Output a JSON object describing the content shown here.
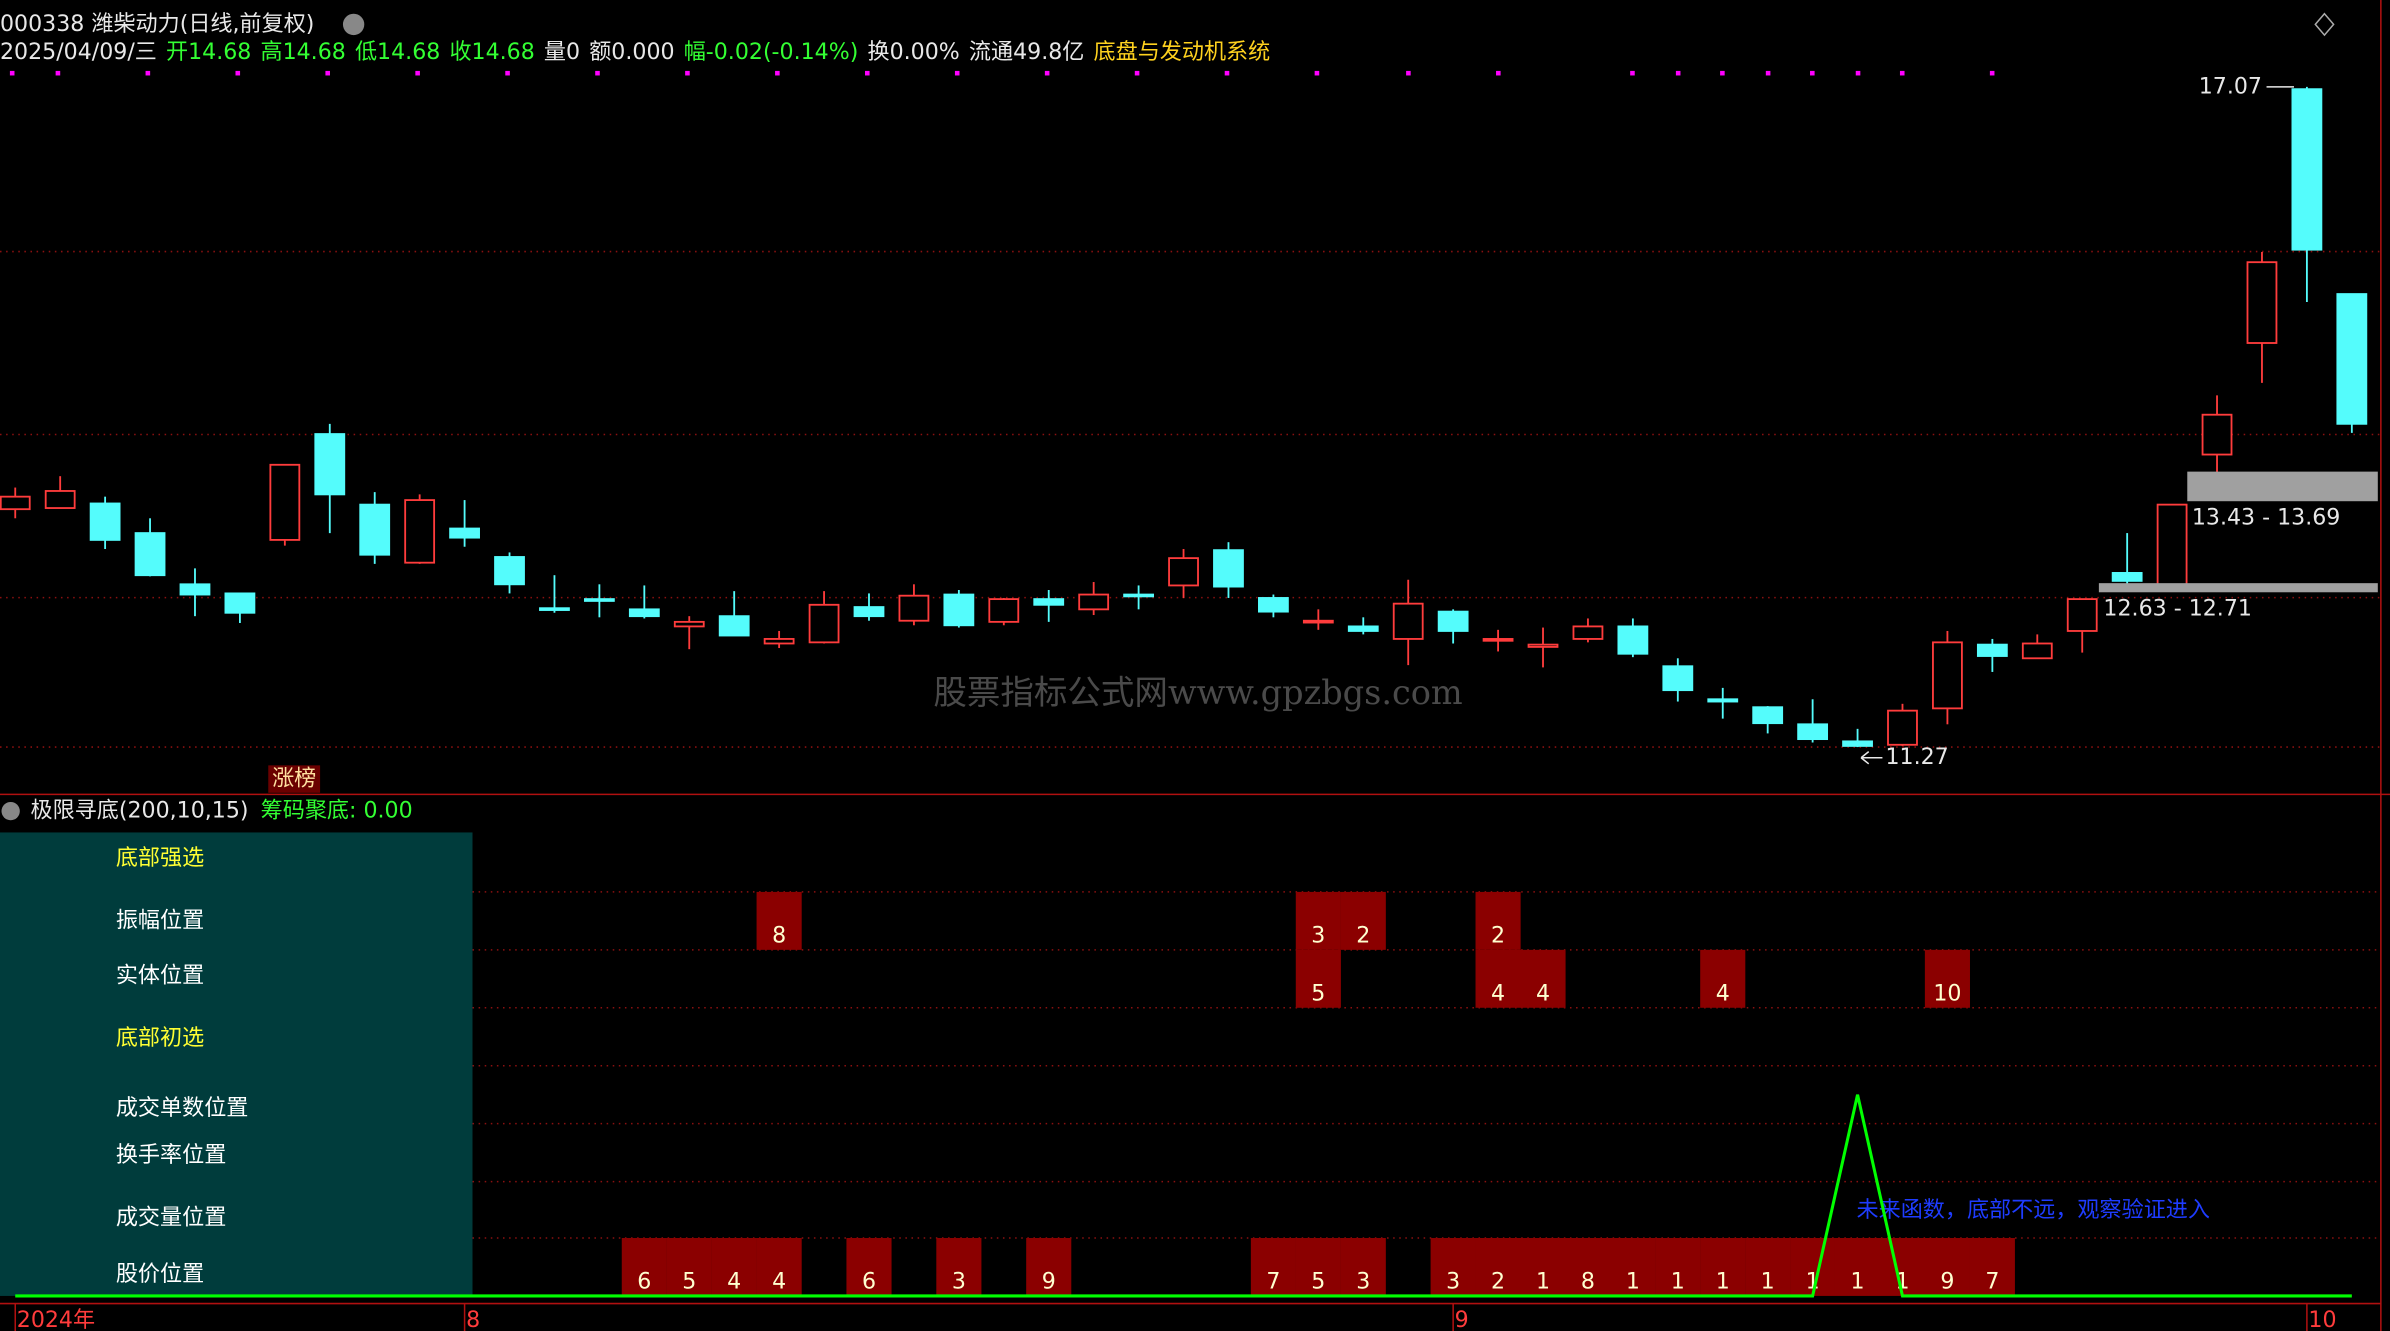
{
  "header": {
    "title": "000338 潍柴动力(日线,前复权)",
    "quote": [
      {
        "text": "2025/04/09/三",
        "color": "#e8e8e8"
      },
      {
        "text": "开14.68",
        "color": "#33ff33"
      },
      {
        "text": "高14.68",
        "color": "#33ff33"
      },
      {
        "text": "低14.68",
        "color": "#33ff33"
      },
      {
        "text": "收14.68",
        "color": "#33ff33"
      },
      {
        "text": "量0",
        "color": "#e8e8e8"
      },
      {
        "text": "额0.000",
        "color": "#e8e8e8"
      },
      {
        "text": "幅-0.02(-0.14%)",
        "color": "#33ff33"
      },
      {
        "text": "换0.00%",
        "color": "#e8e8e8"
      },
      {
        "text": "流通49.8亿",
        "color": "#e8e8e8"
      },
      {
        "text": "底盘与发动机系统",
        "color": "#ffd21e"
      }
    ]
  },
  "watermark": "股票指标公式网www.gpzbgs.com",
  "chart_data": {
    "type": "candlestick",
    "categories": [
      "2024年",
      null,
      null,
      null,
      null,
      null,
      null,
      null,
      null,
      null,
      "8",
      null,
      null,
      null,
      null,
      null,
      null,
      null,
      null,
      null,
      null,
      null,
      null,
      null,
      null,
      null,
      null,
      null,
      null,
      null,
      null,
      null,
      "9",
      null,
      null,
      null,
      null,
      null,
      null,
      null,
      null,
      null,
      null,
      null,
      null,
      null,
      null,
      null,
      null,
      null,
      null,
      "10",
      null
    ],
    "open": [
      13.36,
      13.37,
      13.41,
      13.15,
      12.7,
      12.62,
      13.09,
      14.02,
      13.4,
      12.89,
      13.19,
      12.94,
      12.49,
      12.57,
      12.48,
      12.33,
      12.42,
      12.18,
      12.19,
      12.5,
      12.38,
      12.61,
      12.37,
      12.57,
      12.48,
      12.61,
      12.69,
      13.0,
      12.58,
      12.37,
      12.33,
      12.22,
      12.46,
      12.21,
      12.15,
      12.22,
      12.33,
      11.98,
      11.69,
      11.62,
      11.47,
      11.32,
      11.29,
      11.61,
      12.17,
      12.05,
      12.29,
      12.8,
      12.68,
      13.84,
      14.82,
      17.05,
      15.25
    ],
    "close": [
      13.47,
      13.52,
      13.09,
      12.78,
      12.61,
      12.45,
      13.75,
      13.49,
      12.96,
      13.44,
      13.11,
      12.7,
      12.48,
      12.56,
      12.42,
      12.37,
      12.25,
      12.22,
      12.52,
      12.42,
      12.6,
      12.34,
      12.57,
      12.52,
      12.61,
      12.6,
      12.93,
      12.68,
      12.46,
      12.38,
      12.29,
      12.53,
      12.29,
      12.22,
      12.17,
      12.33,
      12.09,
      11.77,
      11.67,
      11.48,
      11.34,
      11.28,
      11.59,
      12.19,
      12.07,
      12.18,
      12.57,
      12.73,
      13.4,
      14.19,
      15.53,
      15.64,
      14.11
    ],
    "high": [
      13.55,
      13.65,
      13.47,
      13.28,
      12.84,
      12.62,
      13.75,
      14.11,
      13.51,
      13.49,
      13.44,
      12.98,
      12.78,
      12.7,
      12.69,
      12.42,
      12.64,
      12.29,
      12.64,
      12.62,
      12.7,
      12.65,
      12.58,
      12.65,
      12.72,
      12.69,
      13.01,
      13.07,
      12.61,
      12.48,
      12.41,
      12.74,
      12.48,
      12.3,
      12.32,
      12.4,
      12.4,
      12.05,
      11.79,
      11.63,
      11.69,
      11.43,
      11.65,
      12.29,
      12.22,
      12.26,
      12.57,
      13.15,
      13.4,
      14.36,
      15.62,
      17.07,
      15.25
    ],
    "low": [
      13.28,
      13.37,
      13.01,
      12.77,
      12.42,
      12.36,
      13.04,
      13.15,
      12.88,
      12.88,
      13.03,
      12.62,
      12.45,
      12.41,
      12.4,
      12.13,
      12.25,
      12.14,
      12.18,
      12.38,
      12.34,
      12.32,
      12.34,
      12.37,
      12.43,
      12.48,
      12.58,
      12.58,
      12.41,
      12.3,
      12.26,
      11.99,
      12.18,
      12.11,
      11.97,
      12.19,
      12.06,
      11.67,
      11.52,
      11.39,
      11.31,
      11.27,
      11.28,
      11.47,
      11.93,
      12.05,
      12.1,
      12.69,
      12.68,
      13.68,
      14.47,
      15.18,
      14.03
    ],
    "up_color": "#ff3c3c",
    "down_color": "#54fcfc",
    "ylim": [
      11.27,
      17.07
    ],
    "annotations": {
      "high": 17.07,
      "low": 11.27
    },
    "zones": [
      {
        "low": 13.43,
        "high": 13.69,
        "label": "13.43 - 13.69"
      },
      {
        "low": 12.63,
        "high": 12.71,
        "label": "12.63 - 12.71"
      }
    ],
    "tag": "涨榜"
  },
  "indicator": {
    "name": "极限寻底(200,10,15)",
    "stat": "筹码聚底: 0.00",
    "rows": [
      {
        "label": "底部强选",
        "color": "#ffff33"
      },
      {
        "label": "振幅位置",
        "color": "#ffffff",
        "values": [
          null,
          null,
          null,
          null,
          null,
          null,
          null,
          null,
          null,
          null,
          null,
          null,
          null,
          null,
          null,
          null,
          null,
          8,
          null,
          null,
          null,
          null,
          null,
          null,
          null,
          null,
          null,
          null,
          null,
          3,
          2,
          null,
          null,
          2,
          null,
          null,
          null,
          null,
          null,
          null,
          null,
          null,
          null,
          null,
          null,
          null,
          null,
          null,
          null,
          null,
          null,
          null,
          null
        ]
      },
      {
        "label": "实体位置",
        "color": "#ffffff",
        "values": [
          null,
          null,
          null,
          null,
          null,
          null,
          null,
          null,
          null,
          null,
          null,
          null,
          null,
          null,
          null,
          null,
          null,
          null,
          null,
          null,
          null,
          null,
          null,
          null,
          null,
          null,
          null,
          null,
          null,
          5,
          null,
          null,
          null,
          4,
          4,
          null,
          null,
          null,
          4,
          null,
          null,
          null,
          null,
          10,
          null,
          null,
          null,
          null,
          null,
          null,
          null,
          null,
          null
        ]
      },
      {
        "label": "底部初选",
        "color": "#ffff33"
      },
      {
        "label": "成交单数位置",
        "color": "#ffffff"
      },
      {
        "label": "换手率位置",
        "color": "#ffffff"
      },
      {
        "label": "成交量位置",
        "color": "#ffffff"
      },
      {
        "label": "股价位置",
        "color": "#ffffff",
        "values": [
          null,
          null,
          null,
          null,
          null,
          null,
          null,
          null,
          null,
          null,
          null,
          null,
          null,
          null,
          6,
          5,
          4,
          4,
          null,
          6,
          null,
          3,
          null,
          9,
          null,
          null,
          null,
          null,
          7,
          5,
          3,
          null,
          3,
          2,
          1,
          8,
          1,
          1,
          1,
          1,
          1,
          1,
          1,
          9,
          7,
          null,
          null,
          null,
          null,
          null,
          null,
          null,
          null
        ]
      }
    ],
    "cell_color": "#8b0000",
    "signal": [
      0,
      0,
      0,
      0,
      0,
      0,
      0,
      0,
      0,
      0,
      0,
      0,
      0,
      0,
      0,
      0,
      0,
      0,
      0,
      0,
      0,
      0,
      0,
      0,
      0,
      0,
      0,
      0,
      0,
      0,
      0,
      0,
      0,
      0,
      0,
      0,
      0,
      0,
      0,
      0,
      0,
      1,
      0,
      0,
      0,
      0,
      0,
      0,
      0,
      0,
      0,
      0,
      0
    ],
    "signal_color": "#00ff00",
    "note": "未来函数，底部不远，观察验证进入"
  }
}
